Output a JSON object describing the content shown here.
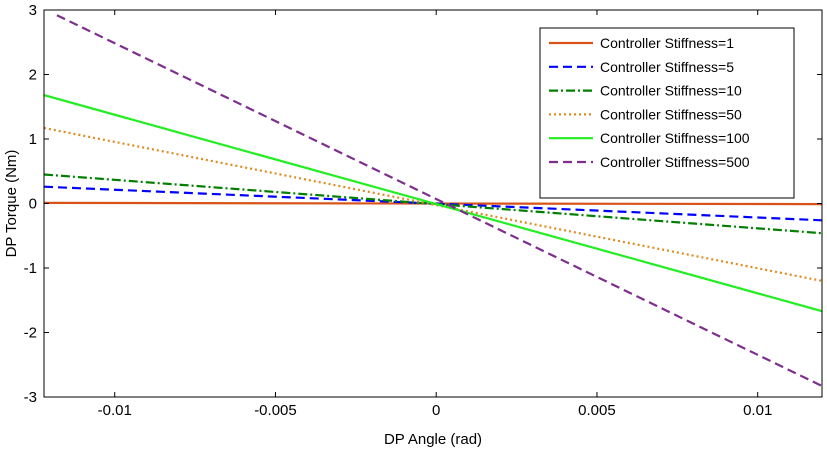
{
  "chart_data": {
    "type": "line",
    "title": "",
    "xlabel": "DP Angle (rad)",
    "ylabel": "DP Torque (Nm)",
    "xlim": [
      -0.0122,
      0.012
    ],
    "ylim": [
      -3,
      3
    ],
    "xticks": [
      -0.01,
      -0.005,
      0,
      0.005,
      0.01
    ],
    "xtick_labels": [
      "-0.01",
      "-0.005",
      "0",
      "0.005",
      "0.01"
    ],
    "yticks": [
      3,
      2,
      1,
      0,
      -1,
      -2,
      -3
    ],
    "ytick_labels": [
      "3",
      "2",
      "1",
      "0",
      "-1",
      "-2",
      "-3"
    ],
    "grid": false,
    "legend_position": "top-right",
    "series": [
      {
        "name": "Controller Stiffness=1",
        "color": "#D95319",
        "dash": "solid",
        "x": [
          -0.0122,
          0.012
        ],
        "y": [
          0.01,
          -0.01
        ]
      },
      {
        "name": "Controller Stiffness=5",
        "color": "#0000FF",
        "dash": "dashed",
        "x": [
          -0.0122,
          0.012
        ],
        "y": [
          0.26,
          -0.26
        ]
      },
      {
        "name": "Controller Stiffness=10",
        "color": "#007F00",
        "dash": "dashdot",
        "x": [
          -0.0122,
          0.012
        ],
        "y": [
          0.45,
          -0.46
        ]
      },
      {
        "name": "Controller Stiffness=50",
        "color": "#E08A1E",
        "dash": "dotted",
        "x": [
          -0.0122,
          0.012
        ],
        "y": [
          1.17,
          -1.2
        ]
      },
      {
        "name": "Controller Stiffness=100",
        "color": "#22EE22",
        "dash": "solid",
        "x": [
          -0.0122,
          0.012
        ],
        "y": [
          1.68,
          -1.67
        ]
      },
      {
        "name": "Controller Stiffness=500",
        "color": "#7E2F8E",
        "dash": "dashed",
        "x": [
          -0.0118,
          0.012
        ],
        "y": [
          2.92,
          -2.83
        ]
      }
    ]
  }
}
